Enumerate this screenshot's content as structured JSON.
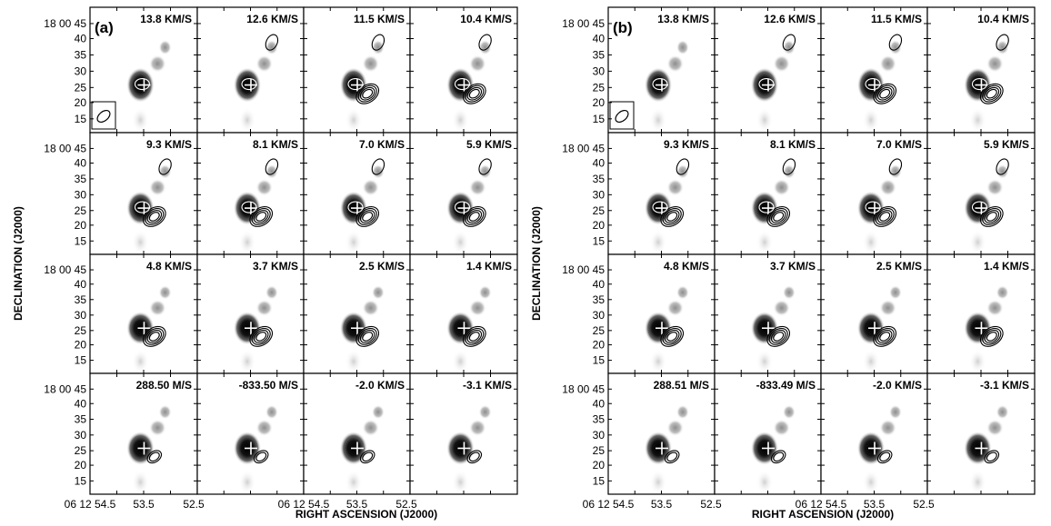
{
  "figure": {
    "panels": [
      {
        "label": "(a)",
        "velocity_labels": [
          [
            "13.8 KM/S",
            "12.6 KM/S",
            "11.5 KM/S",
            "10.4 KM/S"
          ],
          [
            "9.3 KM/S",
            "8.1 KM/S",
            "7.0 KM/S",
            "5.9 KM/S"
          ],
          [
            "4.8 KM/S",
            "3.7 KM/S",
            "2.5 KM/S",
            "1.4 KM/S"
          ],
          [
            "288.50 M/S",
            "-833.50 M/S",
            "-2.0 KM/S",
            "-3.1 KM/S"
          ]
        ],
        "y_axis_title": "DECLINATION (J2000)",
        "x_axis_title": "RIGHT ASCENSION (J2000)",
        "dec_first_label": "18 00 45",
        "dec_ticks": [
          "40",
          "35",
          "30",
          "25",
          "20",
          "15"
        ],
        "ra_ticks": [
          "06 12 54.5",
          "53.5",
          "52.5",
          "06 12 54.5",
          "53.5",
          "52.5"
        ]
      },
      {
        "label": "(b)",
        "velocity_labels": [
          [
            "13.8 KM/S",
            "12.6 KM/S",
            "11.5 KM/S",
            "10.4 KM/S"
          ],
          [
            "9.3 KM/S",
            "8.1 KM/S",
            "7.0 KM/S",
            "5.9 KM/S"
          ],
          [
            "4.8 KM/S",
            "3.7 KM/S",
            "2.5 KM/S",
            "1.4 KM/S"
          ],
          [
            "288.51 M/S",
            "-833.49 M/S",
            "-2.0 KM/S",
            "-3.1 KM/S"
          ]
        ],
        "y_axis_title": "DECLINATION (J2000)",
        "x_axis_title": "RIGHT ASCENSION (J2000)",
        "dec_first_label": "18 00 45",
        "dec_ticks": [
          "40",
          "35",
          "30",
          "25",
          "20",
          "15"
        ],
        "ra_ticks": [
          "06 12 54.5",
          "53.5",
          "52.5",
          "06 12 54.5",
          "53.5",
          "52.5"
        ]
      }
    ],
    "colors": {
      "frame": "#000000",
      "white_contour": "#ffffff",
      "black_contour": "#000000",
      "source_core": "#0a0a0a",
      "source_diffuse": "#9a9a9a"
    }
  }
}
